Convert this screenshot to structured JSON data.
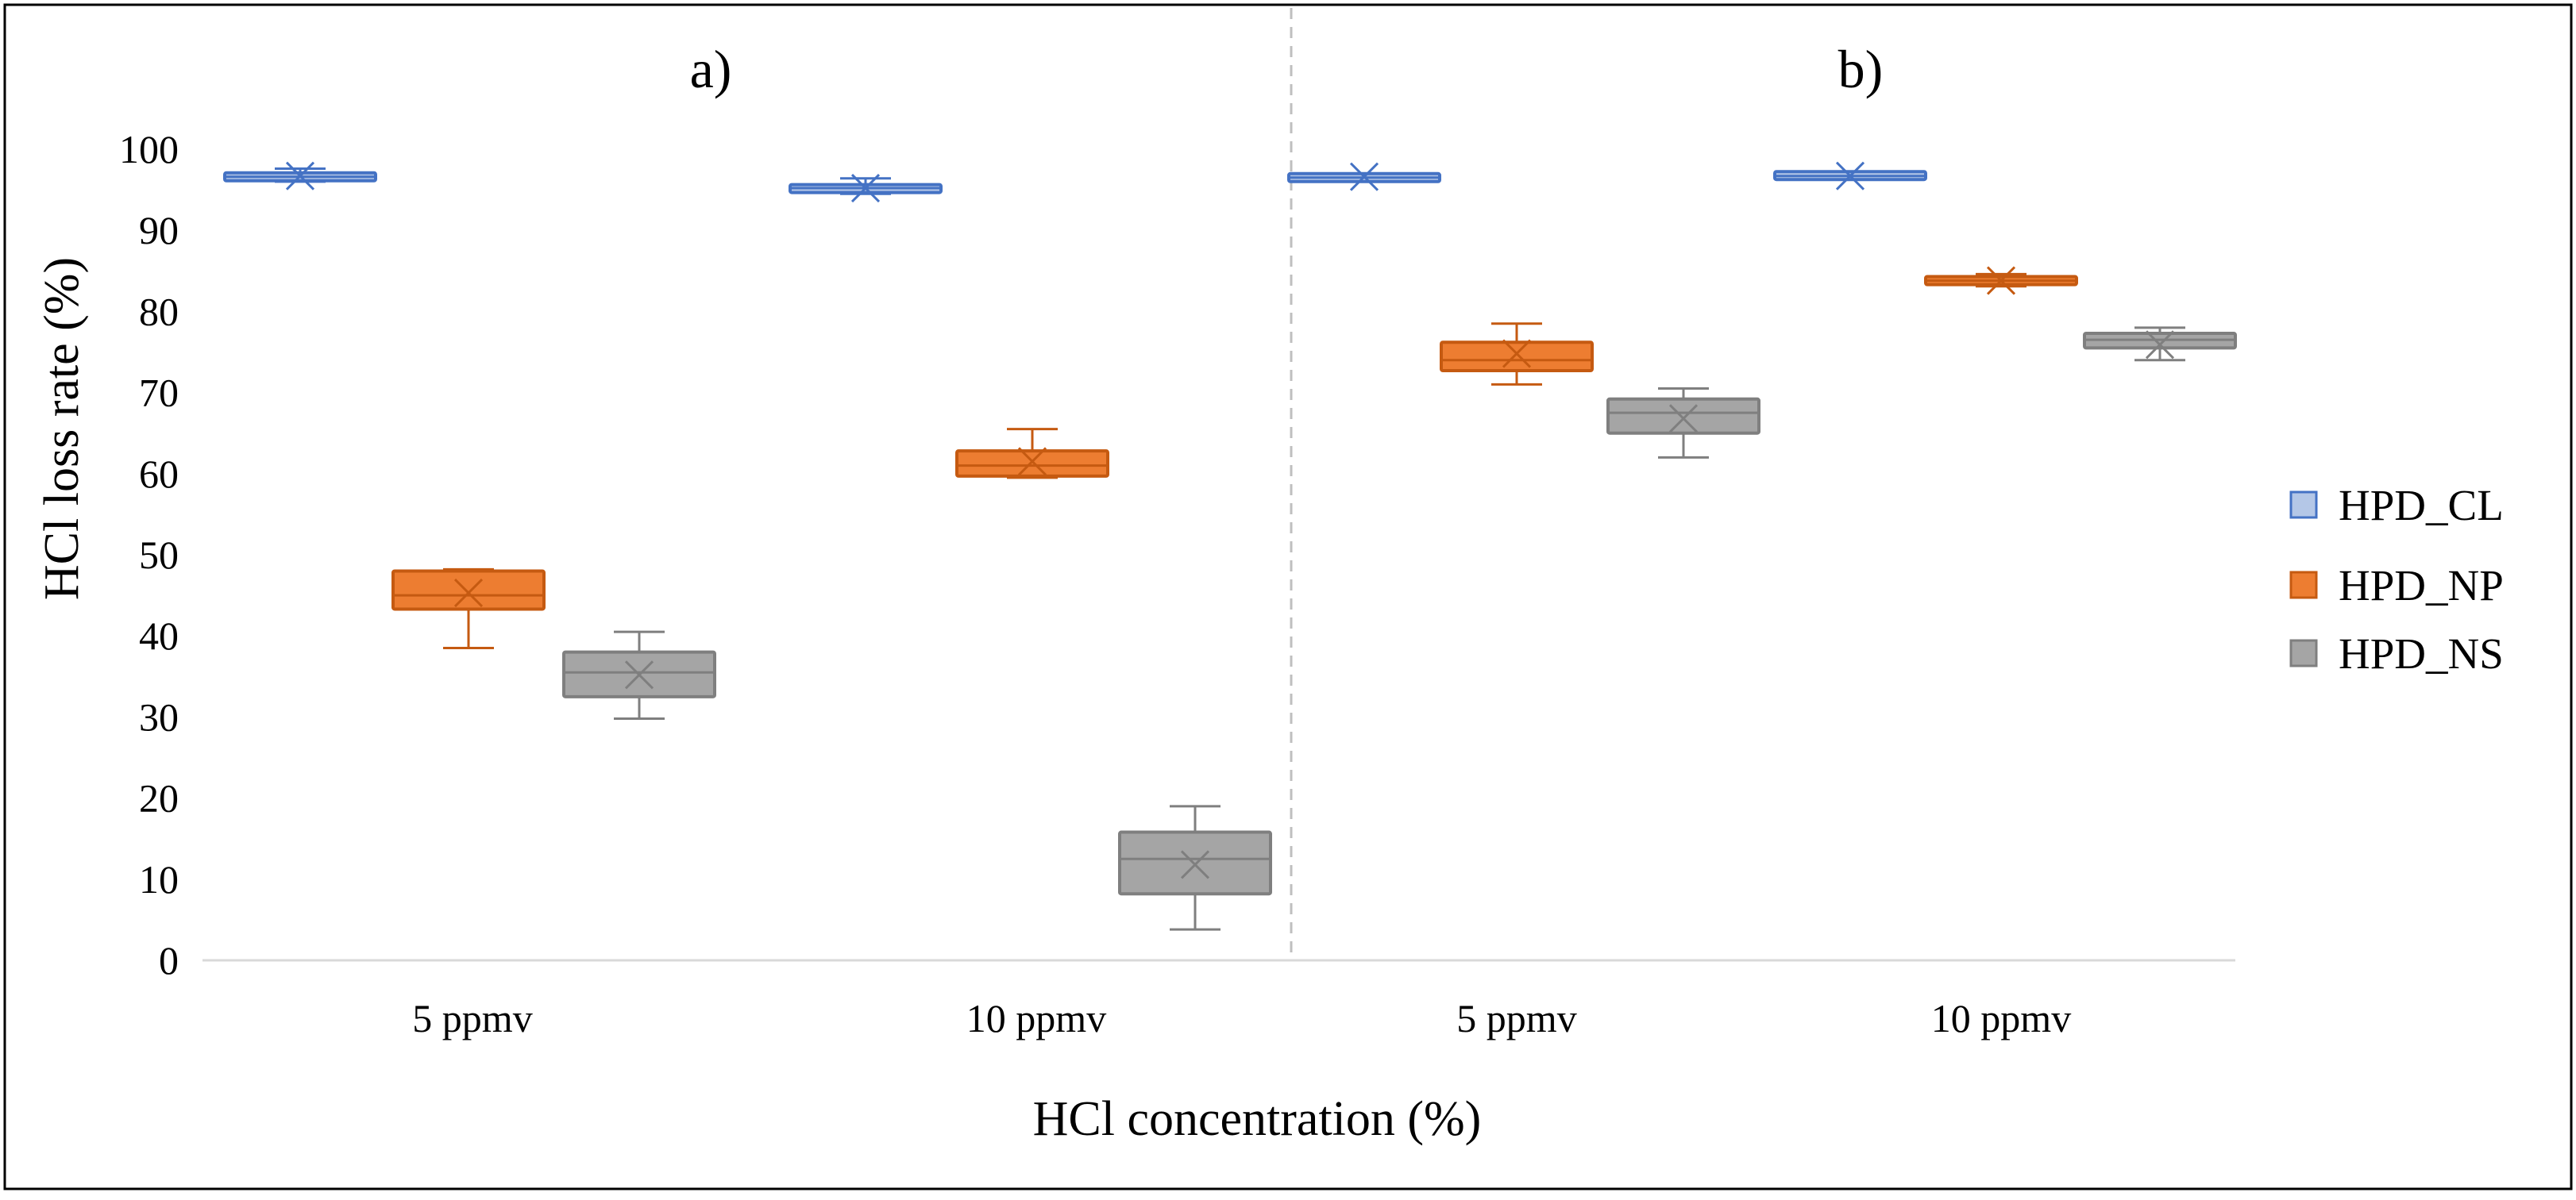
{
  "colors": {
    "HPD_CL": {
      "fill": "#b4c7e7",
      "stroke": "#4472c4"
    },
    "HPD_NP": {
      "fill": "#ed7d31",
      "stroke": "#c55a11"
    },
    "HPD_NS": {
      "fill": "#a5a5a5",
      "stroke": "#7f7f7f"
    },
    "axis": "#d9d9d9",
    "divider": "#bfbfbf",
    "frame": "#000000"
  },
  "chart_data": {
    "type": "box",
    "ylabel": "HCl loss rate (%)",
    "xlabel": "HCl concentration  (%)",
    "ylim": [
      0,
      100
    ],
    "yticks": [
      "0",
      "10",
      "20",
      "30",
      "40",
      "50",
      "60",
      "70",
      "80",
      "90",
      "100"
    ],
    "legend": {
      "placement": "right",
      "entries": [
        "HPD_CL",
        "HPD_NP",
        "HPD_NS"
      ]
    },
    "panels": [
      {
        "title": "a)",
        "categories": [
          "5 ppmv",
          "10 ppmv"
        ],
        "series": [
          {
            "name": "HPD_CL",
            "boxes": [
              {
                "min": 96.0,
                "q1": 96.2,
                "median": 96.6,
                "q3": 97.0,
                "max": 97.6,
                "mean": 96.7
              },
              {
                "min": 94.5,
                "q1": 94.7,
                "median": 95.2,
                "q3": 95.6,
                "max": 96.4,
                "mean": 95.2
              }
            ]
          },
          {
            "name": "HPD_NP",
            "boxes": [
              {
                "min": 38.5,
                "q1": 43.3,
                "median": 45.0,
                "q3": 48.0,
                "max": 48.2,
                "mean": 45.3
              },
              {
                "min": 59.5,
                "q1": 59.7,
                "median": 61.0,
                "q3": 62.8,
                "max": 65.5,
                "mean": 61.5
              }
            ]
          },
          {
            "name": "HPD_NS",
            "boxes": [
              {
                "min": 29.8,
                "q1": 32.5,
                "median": 35.5,
                "q3": 38.0,
                "max": 40.5,
                "mean": 35.2
              },
              {
                "min": 3.8,
                "q1": 8.2,
                "median": 12.5,
                "q3": 15.8,
                "max": 19.0,
                "mean": 11.8
              }
            ]
          }
        ]
      },
      {
        "title": "b)",
        "categories": [
          "5 ppmv",
          "10 ppmv"
        ],
        "series": [
          {
            "name": "HPD_CL",
            "boxes": [
              {
                "min": 96.2,
                "q1": 96.3,
                "median": 96.5,
                "q3": 96.7,
                "max": 96.9,
                "mean": 96.6
              },
              {
                "min": 96.3,
                "q1": 96.4,
                "median": 96.7,
                "q3": 97.1,
                "max": 97.2,
                "mean": 96.7
              }
            ]
          },
          {
            "name": "HPD_NP",
            "boxes": [
              {
                "min": 71.0,
                "q1": 72.7,
                "median": 74.0,
                "q3": 76.2,
                "max": 78.5,
                "mean": 74.8
              },
              {
                "min": 83.1,
                "q1": 83.3,
                "median": 83.8,
                "q3": 84.3,
                "max": 84.6,
                "mean": 83.8
              }
            ]
          },
          {
            "name": "HPD_NS",
            "boxes": [
              {
                "min": 62.0,
                "q1": 65.0,
                "median": 67.5,
                "q3": 69.2,
                "max": 70.5,
                "mean": 66.8
              },
              {
                "min": 74.0,
                "q1": 75.5,
                "median": 76.5,
                "q3": 77.3,
                "max": 78.0,
                "mean": 75.9
              }
            ]
          }
        ]
      }
    ]
  }
}
